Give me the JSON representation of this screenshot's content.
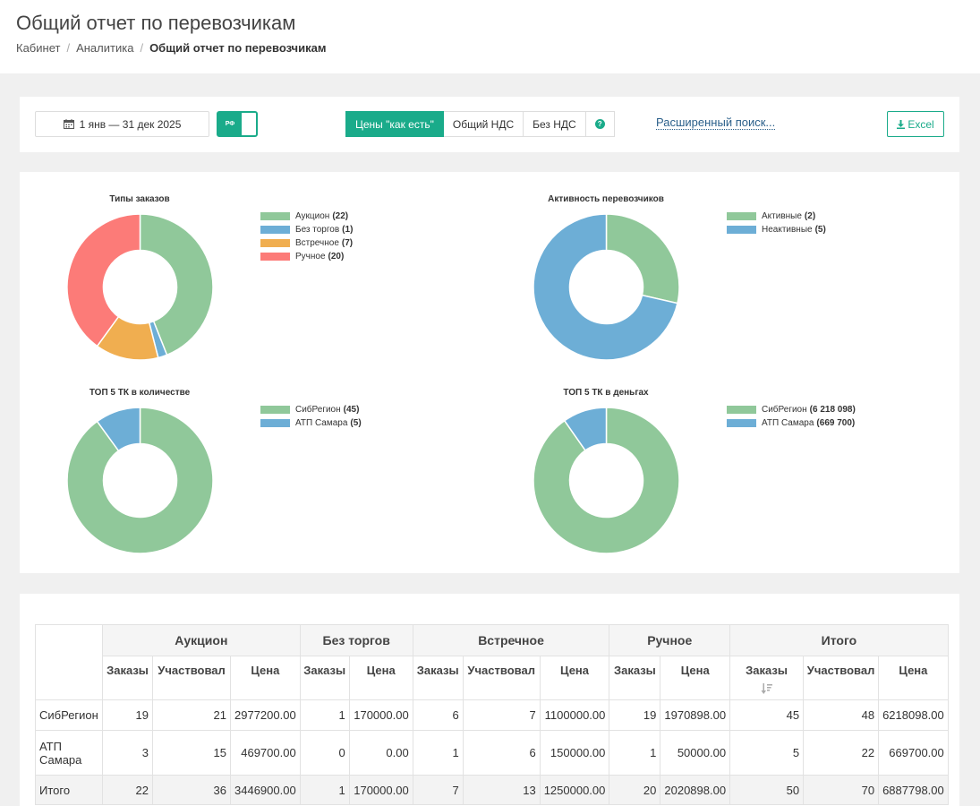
{
  "page": {
    "title": "Общий отчет по перевозчикам",
    "breadcrumb": [
      "Кабинет",
      "Аналитика",
      "Общий отчет по перевозчикам"
    ]
  },
  "toolbar": {
    "date_range": "1 янв — 31 дек 2025",
    "toggle_label": "РФ",
    "price_modes": [
      "Цены \"как есть\"",
      "Общий НДС",
      "Без НДС"
    ],
    "active_price_mode": 0,
    "help_label": "?",
    "advanced_search": "Расширенный поиск...",
    "excel_label": "Excel",
    "accent_color": "#1aab8a"
  },
  "chart_data": [
    {
      "type": "pie",
      "title": "Типы заказов",
      "legend_position": "right",
      "slices": [
        {
          "label": "Аукцион",
          "value": 22,
          "color": "#90c89a"
        },
        {
          "label": "Без торгов",
          "value": 1,
          "color": "#6daed6"
        },
        {
          "label": "Встречное",
          "value": 7,
          "color": "#f0ae50"
        },
        {
          "label": "Ручное",
          "value": 20,
          "color": "#fc7b78"
        }
      ]
    },
    {
      "type": "pie",
      "title": "Активность перевозчиков",
      "legend_position": "right",
      "slices": [
        {
          "label": "Активные",
          "value": 2,
          "color": "#90c89a"
        },
        {
          "label": "Неактивные",
          "value": 5,
          "color": "#6daed6"
        }
      ]
    },
    {
      "type": "pie",
      "title": "ТОП 5 ТК в количестве",
      "legend_position": "right",
      "slices": [
        {
          "label": "СибРегион",
          "value": 45,
          "color": "#90c89a"
        },
        {
          "label": "АТП Самара",
          "value": 5,
          "color": "#6daed6"
        }
      ]
    },
    {
      "type": "pie",
      "title": "ТОП 5 ТК в деньгах",
      "legend_position": "right",
      "slices": [
        {
          "label": "СибРегион",
          "value": 6218098,
          "display": "6 218 098",
          "color": "#90c89a"
        },
        {
          "label": "АТП Самара",
          "value": 669700,
          "display": "669 700",
          "color": "#6daed6"
        }
      ]
    }
  ],
  "table": {
    "groups": [
      "Аукцион",
      "Без торгов",
      "Встречное",
      "Ручное",
      "Итого"
    ],
    "sub_headers": [
      "Заказы",
      "Участвовал",
      "Цена",
      "Заказы",
      "Цена",
      "Заказы",
      "Участвовал",
      "Цена",
      "Заказы",
      "Цена",
      "Заказы",
      "Участвовал",
      "Цена"
    ],
    "sorted_column": 10,
    "rows": [
      {
        "name": "СибРегион",
        "cells": [
          "19",
          "21",
          "2977200.00",
          "1",
          "170000.00",
          "6",
          "7",
          "1100000.00",
          "19",
          "1970898.00",
          "45",
          "48",
          "6218098.00"
        ]
      },
      {
        "name": "АТП Самара",
        "cells": [
          "3",
          "15",
          "469700.00",
          "0",
          "0.00",
          "1",
          "6",
          "150000.00",
          "1",
          "50000.00",
          "5",
          "22",
          "669700.00"
        ]
      },
      {
        "name": "Итого",
        "cells": [
          "22",
          "36",
          "3446900.00",
          "1",
          "170000.00",
          "7",
          "13",
          "1250000.00",
          "20",
          "2020898.00",
          "50",
          "70",
          "6887798.00"
        ]
      }
    ]
  }
}
